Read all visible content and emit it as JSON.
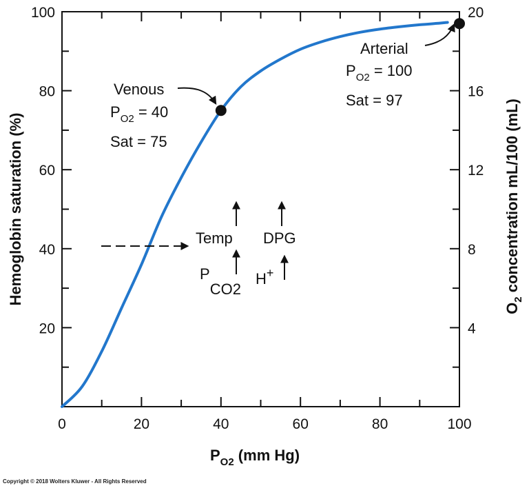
{
  "chart_data": {
    "type": "line",
    "xlabel_main": "P",
    "xlabel_sub": "O2",
    "xlabel_rest": " (mm Hg)",
    "ylabel": "Hemoglobin saturation (%)",
    "y2label_main": "O",
    "y2label_sub": "2",
    "y2label_rest": " concentration mL/100 (mL)",
    "xlim": [
      0,
      100
    ],
    "ylim": [
      0,
      100
    ],
    "y2lim": [
      0,
      20
    ],
    "x_ticks": [
      "0",
      "20",
      "40",
      "60",
      "80",
      "100"
    ],
    "y_ticks": [
      "20",
      "40",
      "60",
      "80",
      "100"
    ],
    "y2_ticks": [
      "4",
      "8",
      "12",
      "16",
      "20"
    ],
    "line_color": "#2277cc",
    "series": [
      {
        "x": [
          0,
          5,
          10,
          15,
          20,
          25,
          30,
          35,
          40,
          45,
          50,
          55,
          60,
          65,
          70,
          75,
          80,
          85,
          90,
          95,
          97
        ],
        "values": [
          0,
          5,
          14,
          25,
          36,
          48,
          58,
          67,
          75,
          81,
          85,
          88,
          90.5,
          92.3,
          93.7,
          94.8,
          95.6,
          96.2,
          96.7,
          97.1,
          97.3
        ]
      }
    ],
    "points": [
      {
        "x": 40,
        "y": 75
      },
      {
        "x": 100,
        "y": 97
      }
    ]
  },
  "annotations": {
    "venous_label": "Venous",
    "venous_p": "P",
    "venous_sub": "O2",
    "venous_val": " = 40",
    "venous_sat": "Sat = 75",
    "arterial_label": "Arterial",
    "arterial_p": "P",
    "arterial_sub": "O2",
    "arterial_val": " = 100",
    "arterial_sat": "Sat = 97",
    "temp": "Temp",
    "dpg": "DPG",
    "pco2_p": "P",
    "pco2_sub": "CO2",
    "h_plus": "H",
    "h_plus_sup": "+"
  },
  "copyright": "Copyright © 2018 Wolters Kluwer - All Rights Reserved"
}
